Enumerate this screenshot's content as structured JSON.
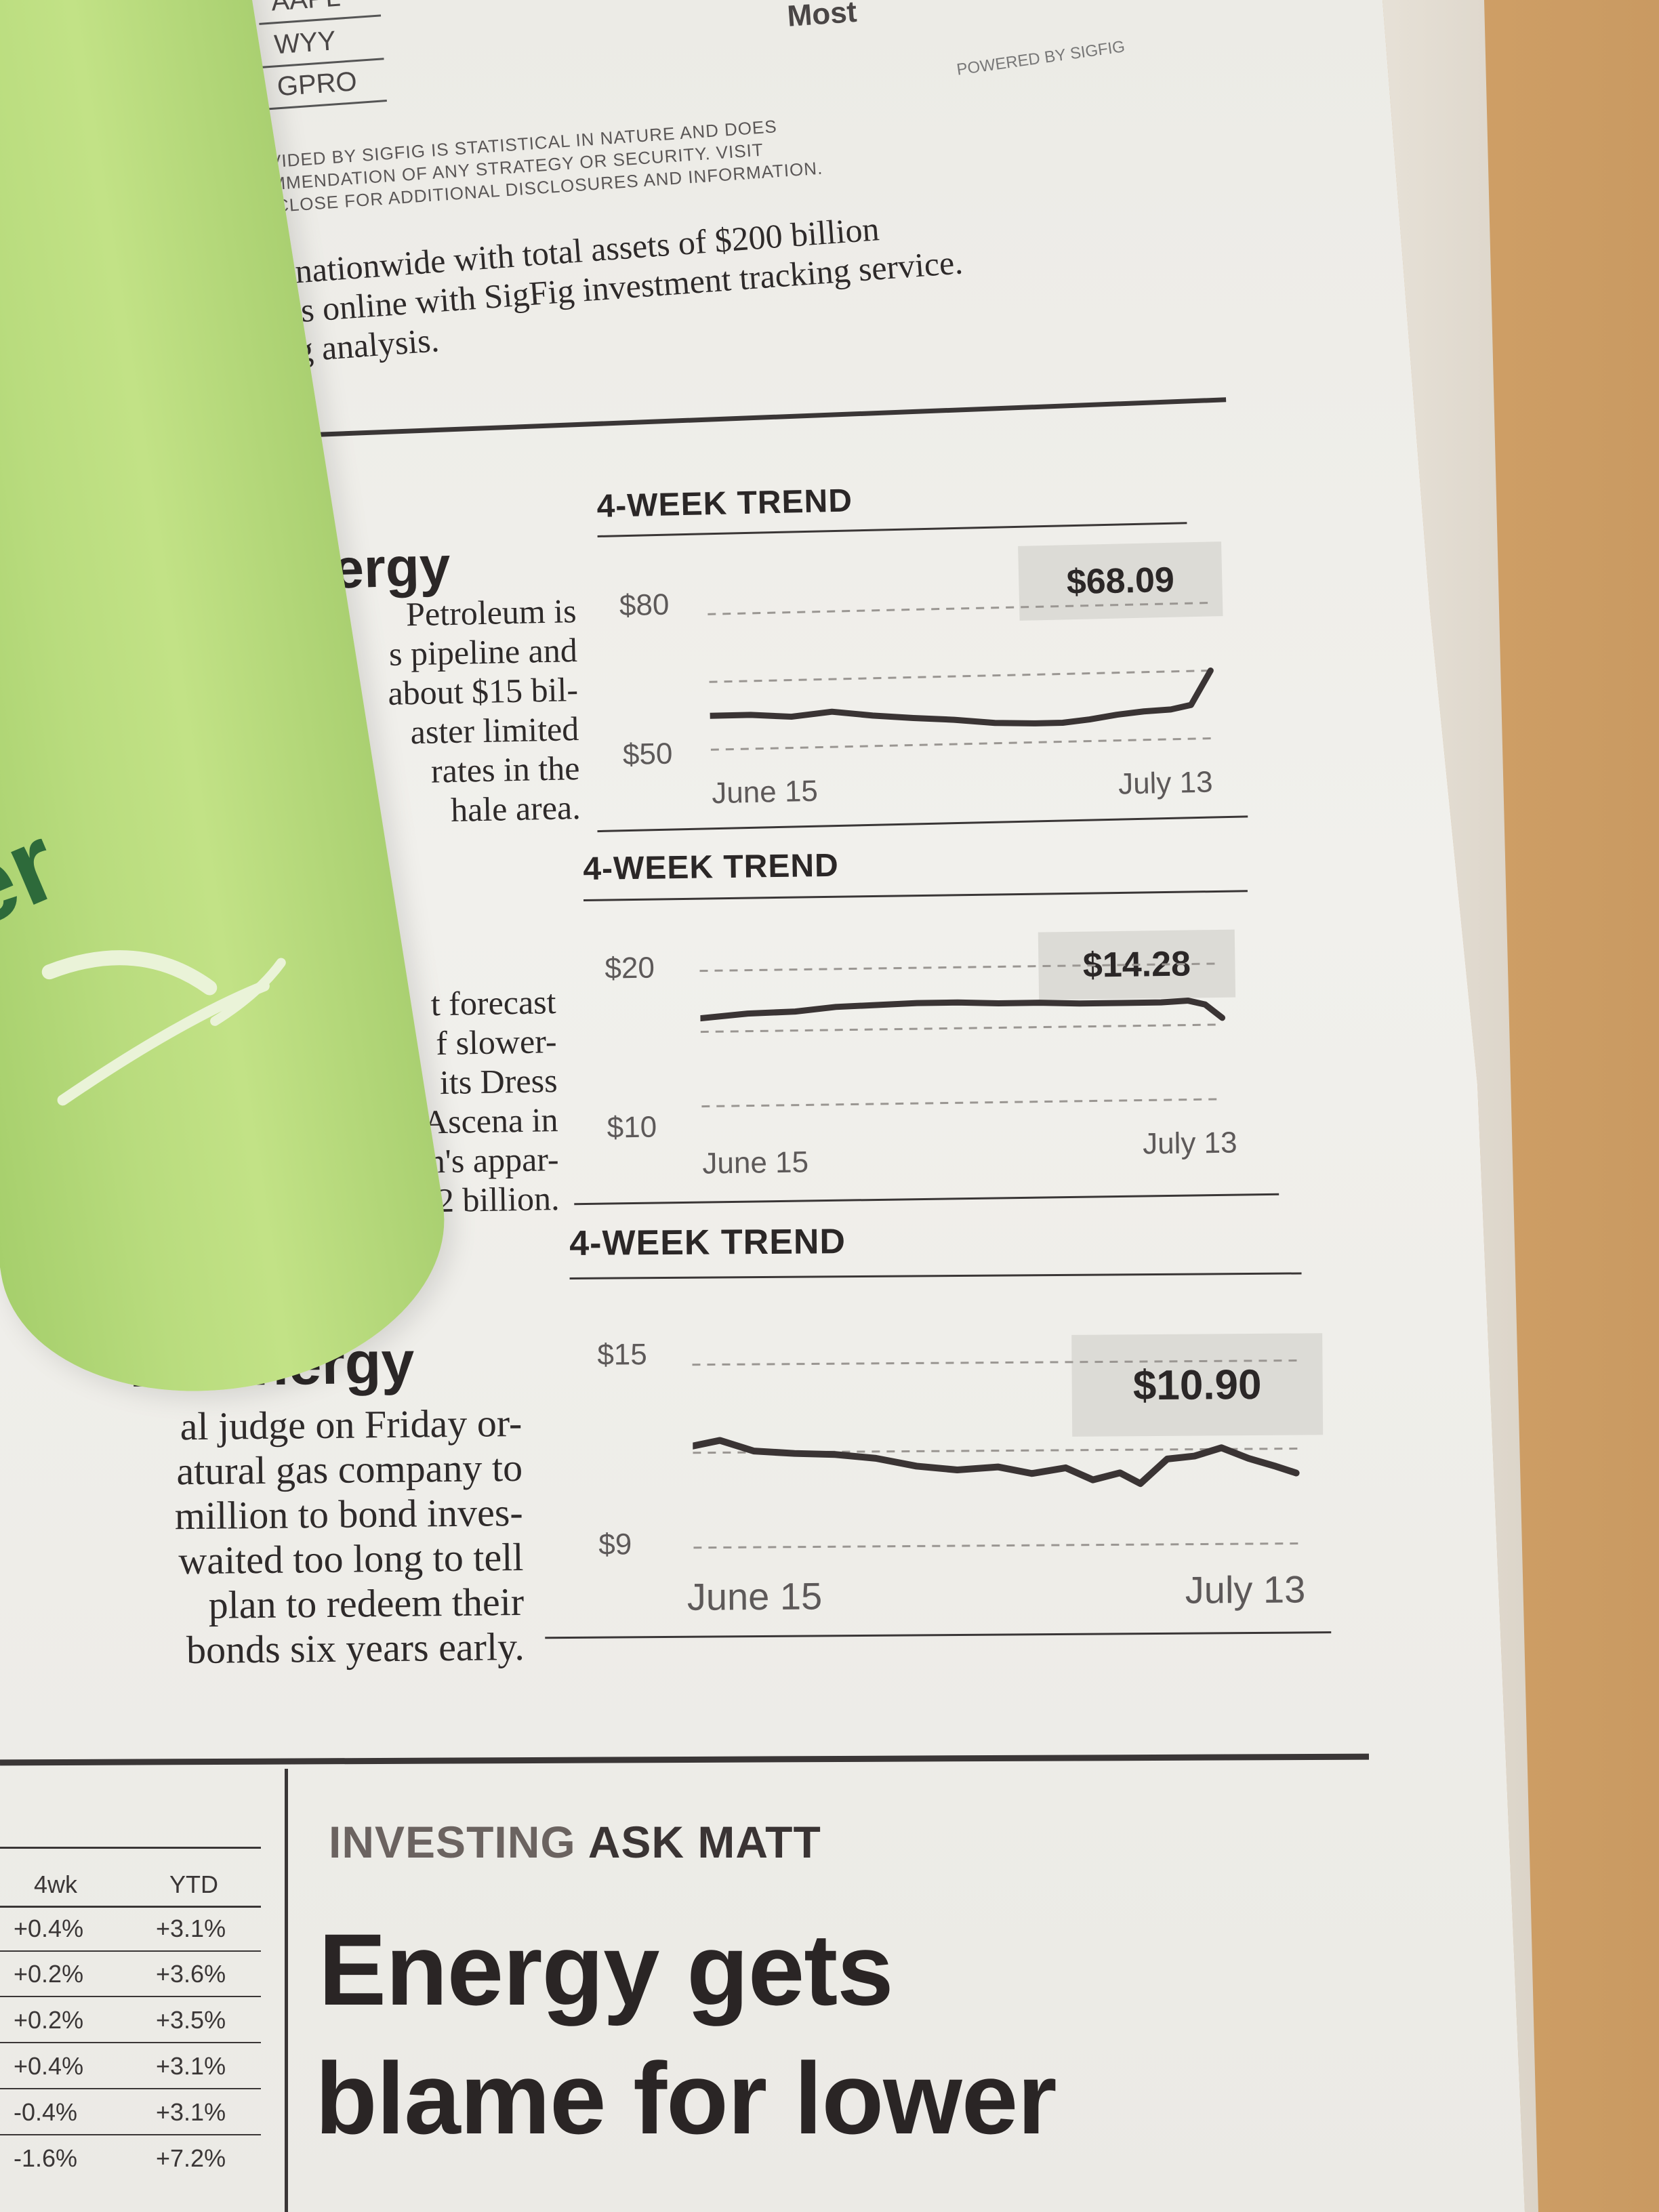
{
  "ticker": {
    "symbols": [
      "AAPL",
      "WYY",
      "GPRO"
    ],
    "fragment_right": "Most"
  },
  "disclaimer": {
    "lines": [
      "OVIDED BY SIGFIG IS STATISTICAL IN NATURE AND DOES",
      "OMMENDATION OF ANY STRATEGY OR SECURITY. VISIT",
      "ISCLOSE FOR ADDITIONAL DISCLOSURES AND INFORMATION."
    ],
    "powered_by": "POWERED BY SIGFIG"
  },
  "intro_text": {
    "lines": [
      "rs nationwide with total assets of $200 billion",
      "lios online with SigFig investment tracking service.",
      "Fig analysis."
    ]
  },
  "stories": [
    {
      "company_fragment": "nergy",
      "body_lines": [
        "Petroleum is",
        "s pipeline and",
        "about $15 bil-",
        "aster limited",
        "rates in the",
        "hale area."
      ],
      "trend": {
        "title": "4-WEEK TREND",
        "price": "$68.09",
        "y_max_label": "$80",
        "y_min_label": "$50",
        "x_start": "June 15",
        "x_end": "July 13"
      }
    },
    {
      "company_fragment": "",
      "body_lines": [
        "t forecast",
        "f slower-",
        "its Dress",
        "Ascena in",
        "en's appar-",
        ".2 billion."
      ],
      "trend": {
        "title": "4-WEEK TREND",
        "price": "$14.28",
        "y_max_label": "$20",
        "y_min_label": "$10",
        "x_start": "June 15",
        "x_end": "July 13"
      }
    },
    {
      "company_fragment": "ke Energy",
      "body_lines": [
        "al judge on Friday or-",
        "atural gas company to",
        "million to bond inves-",
        "waited too long to tell",
        "plan to redeem their",
        "bonds six years early."
      ],
      "trend": {
        "title": "4-WEEK TREND",
        "price": "$10.90",
        "y_max_label": "$15",
        "y_min_label": "$9",
        "x_start": "June 15",
        "x_end": "July 13"
      }
    }
  ],
  "bottom": {
    "table_headers": [
      "4wk",
      "YTD"
    ],
    "table_rows": [
      [
        "+0.4%",
        "+3.1%"
      ],
      [
        "+0.2%",
        "+3.6%"
      ],
      [
        "+0.2%",
        "+3.5%"
      ],
      [
        "+0.4%",
        "+3.1%"
      ],
      [
        "-0.4%",
        "+3.1%"
      ],
      [
        "-1.6%",
        "+7.2%"
      ]
    ],
    "section_tag_1": "INVESTING",
    "section_tag_2": "ASK MATT",
    "headline_line_1": "Energy gets",
    "headline_line_2": "blame for lower"
  },
  "cup": {
    "logo_fragment": "er"
  },
  "colors": {
    "cup_green": "#b9dc7e",
    "section_tag_tint": "#6b6360",
    "desk": "#d9a86a"
  }
}
